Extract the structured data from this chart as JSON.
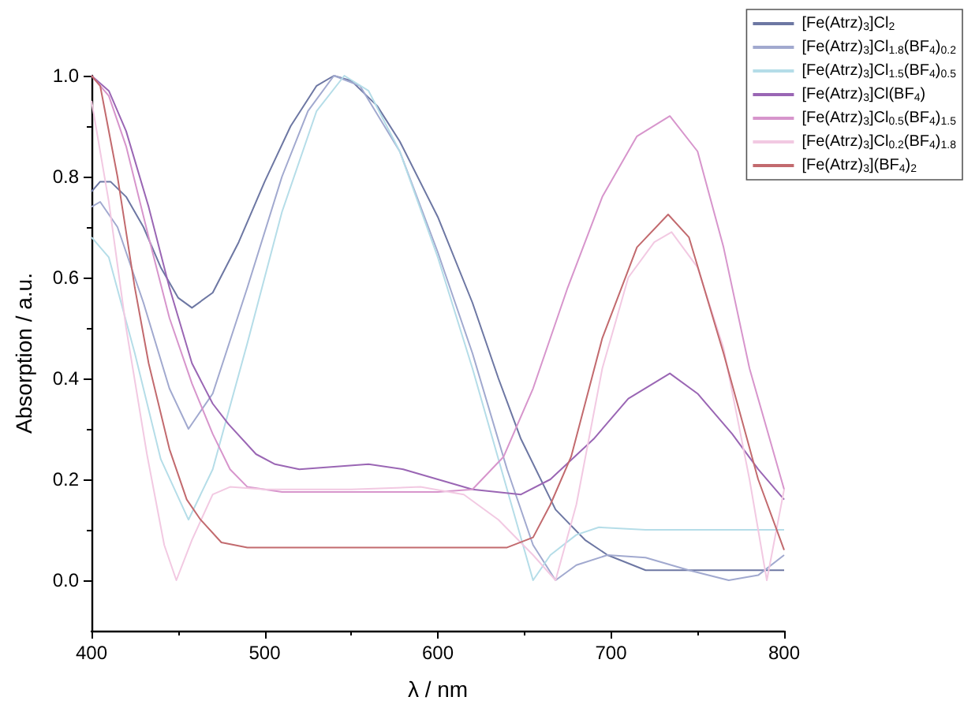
{
  "chart_data": {
    "type": "line",
    "xlabel": "λ / nm",
    "ylabel": "Absorption / a.u.",
    "xlim": [
      400,
      800
    ],
    "xticks": [
      400,
      500,
      600,
      700,
      800
    ],
    "ylim": [
      -0.1,
      1.0
    ],
    "yticks": [
      {
        "value": 0,
        "label": "0.0"
      },
      {
        "value": 0.2,
        "label": "0.2"
      },
      {
        "value": 0.4,
        "label": "0.4"
      },
      {
        "value": 0.6,
        "label": "0.6"
      },
      {
        "value": 0.8,
        "label": "0.8"
      },
      {
        "value": 1.0,
        "label": "1.0"
      }
    ],
    "grid": false,
    "legend": "top right",
    "marker": "none",
    "line_style": "solid",
    "series": [
      {
        "name": "[Fe(Atrz)$_{3}$]Cl$_{2}$",
        "color": "#6d77a3",
        "x": [
          400,
          405,
          411,
          420,
          430,
          440,
          450,
          458,
          470,
          485,
          500,
          515,
          530,
          540,
          550,
          565,
          578,
          600,
          620,
          635,
          648,
          668,
          685,
          698,
          720,
          750,
          800
        ],
        "values": [
          0.77,
          0.79,
          0.79,
          0.76,
          0.7,
          0.62,
          0.56,
          0.54,
          0.57,
          0.67,
          0.79,
          0.9,
          0.98,
          1.0,
          0.99,
          0.94,
          0.87,
          0.72,
          0.55,
          0.4,
          0.28,
          0.14,
          0.08,
          0.05,
          0.02,
          0.02,
          0.02
        ]
      },
      {
        "name": "[Fe(Atrz)$_{3}$]Cl$_{1.8}$(BF$_{4}$)$_{0.2}$",
        "color": "#a1a9cf",
        "x": [
          400,
          405,
          415,
          430,
          445,
          456,
          470,
          490,
          510,
          525,
          540,
          555,
          578,
          600,
          620,
          640,
          655,
          668,
          680,
          698,
          720,
          745,
          768,
          785,
          800
        ],
        "values": [
          0.74,
          0.75,
          0.7,
          0.55,
          0.38,
          0.3,
          0.37,
          0.58,
          0.8,
          0.93,
          1.0,
          0.98,
          0.85,
          0.65,
          0.45,
          0.22,
          0.07,
          0.0,
          0.03,
          0.05,
          0.045,
          0.02,
          0.0,
          0.01,
          0.05
        ]
      },
      {
        "name": "[Fe(Atrz)$_{3}$]Cl$_{1.5}$(BF$_{4}$)$_{0.5}$",
        "color": "#b5dde8",
        "x": [
          400,
          410,
          425,
          440,
          456,
          470,
          490,
          510,
          530,
          546,
          560,
          578,
          600,
          620,
          640,
          655,
          665,
          680,
          693,
          720,
          760,
          800
        ],
        "values": [
          0.68,
          0.64,
          0.45,
          0.24,
          0.12,
          0.22,
          0.47,
          0.73,
          0.93,
          1.0,
          0.97,
          0.85,
          0.64,
          0.42,
          0.18,
          0.0,
          0.05,
          0.09,
          0.105,
          0.1,
          0.1,
          0.1
        ]
      },
      {
        "name": "[Fe(Atrz)$_{3}$]Cl(BF$_{4}$)",
        "color": "#9a66b4",
        "x": [
          400,
          410,
          420,
          433,
          445,
          458,
          470,
          479,
          495,
          506,
          520,
          540,
          560,
          580,
          600,
          620,
          648,
          665,
          690,
          710,
          734,
          750,
          770,
          785,
          800
        ],
        "values": [
          1.0,
          0.97,
          0.89,
          0.74,
          0.58,
          0.43,
          0.35,
          0.31,
          0.25,
          0.23,
          0.22,
          0.225,
          0.23,
          0.22,
          0.2,
          0.18,
          0.17,
          0.2,
          0.28,
          0.36,
          0.41,
          0.37,
          0.29,
          0.22,
          0.16
        ]
      },
      {
        "name": "[Fe(Atrz)$_{3}$]Cl$_{0.5}$(BF$_{4}$)$_{1.5}$",
        "color": "#d795cc",
        "x": [
          400,
          410,
          420,
          433,
          445,
          458,
          470,
          480,
          490,
          510,
          560,
          600,
          620,
          638,
          655,
          675,
          695,
          715,
          734,
          750,
          765,
          780,
          800
        ],
        "values": [
          1.0,
          0.96,
          0.86,
          0.68,
          0.52,
          0.39,
          0.29,
          0.22,
          0.185,
          0.175,
          0.175,
          0.175,
          0.18,
          0.245,
          0.38,
          0.58,
          0.76,
          0.88,
          0.92,
          0.85,
          0.66,
          0.42,
          0.18
        ]
      },
      {
        "name": "[Fe(Atrz)$_{3}$]Cl$_{0.2}$(BF$_{4}$)$_{1.8}$",
        "color": "#f2c9e2",
        "x": [
          400,
          410,
          420,
          432,
          442,
          449,
          458,
          470,
          480,
          500,
          550,
          590,
          615,
          635,
          655,
          668,
          680,
          695,
          710,
          725,
          735,
          750,
          765,
          780,
          790,
          800
        ],
        "values": [
          0.95,
          0.75,
          0.5,
          0.25,
          0.07,
          0.0,
          0.08,
          0.17,
          0.185,
          0.18,
          0.18,
          0.185,
          0.17,
          0.12,
          0.05,
          0.0,
          0.15,
          0.42,
          0.6,
          0.67,
          0.69,
          0.62,
          0.46,
          0.2,
          0.0,
          0.18
        ]
      },
      {
        "name": "[Fe(Atrz)$_{3}$](BF$_{4}$)$_{2}$",
        "color": "#c26a6e",
        "x": [
          400,
          405,
          415,
          425,
          433,
          445,
          455,
          463,
          475,
          490,
          550,
          600,
          640,
          655,
          665,
          677,
          695,
          715,
          733,
          745,
          765,
          785,
          800
        ],
        "values": [
          1.0,
          0.98,
          0.8,
          0.58,
          0.43,
          0.26,
          0.16,
          0.12,
          0.075,
          0.065,
          0.065,
          0.065,
          0.065,
          0.085,
          0.15,
          0.245,
          0.48,
          0.66,
          0.725,
          0.68,
          0.45,
          0.2,
          0.06
        ]
      }
    ]
  }
}
